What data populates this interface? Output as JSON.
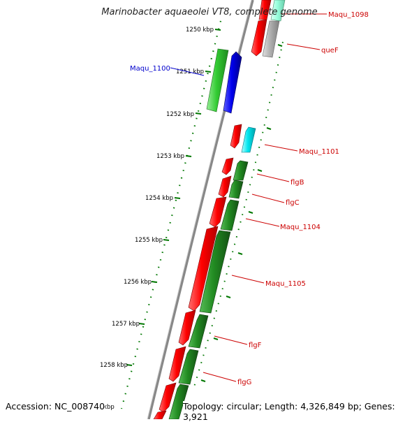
{
  "title": "Marinobacter aquaeolei VT8, complete genome",
  "footer": {
    "accession": "Accession: NC_008740",
    "topology": "Topology: circular; Length: 4,326,849 bp; Genes: 3,921"
  },
  "scale": {
    "unit_suffix": "kbp",
    "ticks": [
      {
        "label": "1250 kbp"
      },
      {
        "label": "1251 kbp"
      },
      {
        "label": "1252 kbp"
      },
      {
        "label": "1253 kbp"
      },
      {
        "label": "1254 kbp"
      },
      {
        "label": "1255 kbp"
      },
      {
        "label": "1256 kbp"
      },
      {
        "label": "1257 kbp"
      },
      {
        "label": "1258 kbp"
      }
    ]
  },
  "gene_labels": [
    {
      "name": "Maqu_1098",
      "color": "#cc0000"
    },
    {
      "name": "queF",
      "color": "#cc0000"
    },
    {
      "name": "Maqu_1100",
      "color": "#0000cc"
    },
    {
      "name": "Maqu_1101",
      "color": "#cc0000"
    },
    {
      "name": "flgB",
      "color": "#cc0000"
    },
    {
      "name": "flgC",
      "color": "#cc0000"
    },
    {
      "name": "Maqu_1104",
      "color": "#cc0000"
    },
    {
      "name": "Maqu_1105",
      "color": "#cc0000"
    },
    {
      "name": "flgF",
      "color": "#cc0000"
    },
    {
      "name": "flgG",
      "color": "#cc0000"
    }
  ],
  "colors": {
    "cds_forward": "#ff0000",
    "cds_reverse_dark": "#228b22",
    "cds_reverse_light": "#33cc33",
    "cds_blue": "#0000ee",
    "cds_cyan": "#00e5ee",
    "cds_grey": "#b0b0b0",
    "cds_mint": "#99ffdd",
    "backbone": "#888888",
    "tick_green": "#007700"
  }
}
